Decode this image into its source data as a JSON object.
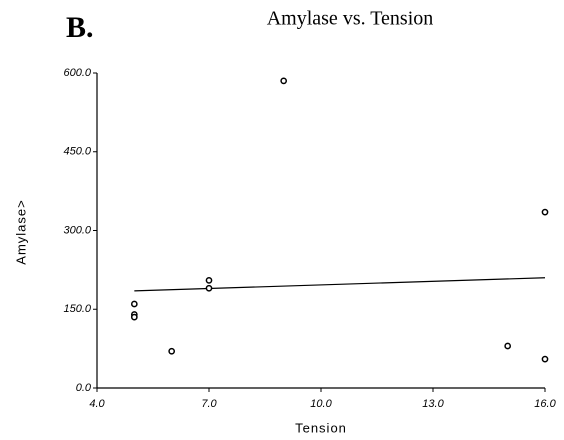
{
  "chart_data": {
    "type": "scatter",
    "panel_label": "B.",
    "title": "Amylase vs. Tension",
    "x_label": "Tension",
    "y_label": "Amylase>",
    "x": [
      5,
      5,
      5,
      6,
      7,
      7,
      9,
      15,
      16,
      16
    ],
    "values": [
      160,
      140,
      135,
      70,
      205,
      190,
      585,
      80,
      335,
      55
    ],
    "color": "#000000",
    "trendline": {
      "x": [
        5,
        16
      ],
      "values": [
        185,
        210
      ]
    },
    "xlim": [
      4,
      16
    ],
    "ylim": [
      0,
      600
    ],
    "xticks": [
      {
        "value": 4,
        "label": "4.0"
      },
      {
        "value": 7,
        "label": "7.0"
      },
      {
        "value": 10,
        "label": "10.0"
      },
      {
        "value": 13,
        "label": "13.0"
      },
      {
        "value": 16,
        "label": "16.0"
      }
    ],
    "yticks": [
      {
        "value": 0,
        "label": "0.0"
      },
      {
        "value": 150,
        "label": "150.0"
      },
      {
        "value": 300,
        "label": "300.0"
      },
      {
        "value": 450,
        "label": "450.0"
      },
      {
        "value": 600,
        "label": "600.0"
      }
    ]
  }
}
